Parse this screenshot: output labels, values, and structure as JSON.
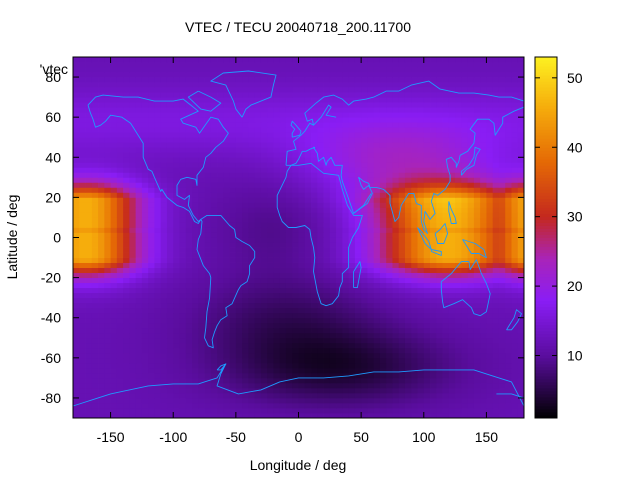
{
  "chart_data": {
    "type": "heatmap",
    "title": "VTEC / TECU 20040718_200.11700",
    "xlabel": "Longitude / deg",
    "ylabel": "Latitude / deg",
    "series_label": "'vtec",
    "xlim": [
      -180,
      180
    ],
    "ylim": [
      -90,
      90
    ],
    "xticks": [
      -150,
      -100,
      -50,
      0,
      50,
      100,
      150
    ],
    "yticks": [
      -80,
      -60,
      -40,
      -20,
      0,
      20,
      40,
      60,
      80
    ],
    "colorbar": {
      "range": [
        1,
        53
      ],
      "ticks": [
        10,
        20,
        30,
        40,
        50
      ],
      "stops": [
        {
          "v": 1,
          "color": "#000000"
        },
        {
          "v": 10,
          "color": "#5a0d9e"
        },
        {
          "v": 18,
          "color": "#8a1df5"
        },
        {
          "v": 24,
          "color": "#a924b8"
        },
        {
          "v": 30,
          "color": "#c4281e"
        },
        {
          "v": 38,
          "color": "#e56a05"
        },
        {
          "v": 46,
          "color": "#f6ae0c"
        },
        {
          "v": 53,
          "color": "#fdf021"
        }
      ]
    },
    "grid_resolution": {
      "lon_step": 5,
      "lat_step": 2.5
    },
    "coastline_color": "#1e9bff",
    "features": {
      "crest_peak_tecu": 48,
      "southern_minimum_tecu": 3
    }
  }
}
